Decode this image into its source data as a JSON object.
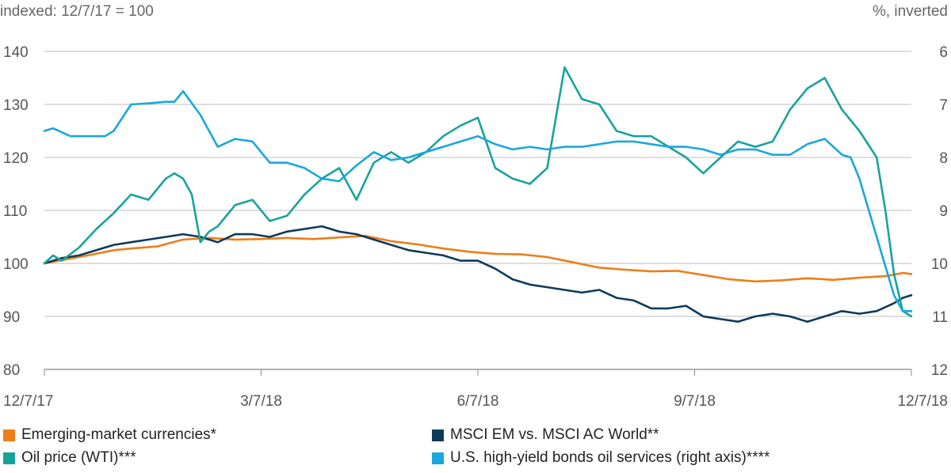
{
  "chart_data": {
    "type": "line",
    "left_axis_label": "indexed: 12/7/17 = 100",
    "right_axis_label": "%, inverted",
    "left_ylim": [
      80,
      140
    ],
    "left_ticks": [
      "80",
      "90",
      "100",
      "110",
      "120",
      "130",
      "140"
    ],
    "right_ylim": [
      6,
      12
    ],
    "right_inverted": true,
    "right_ticks": [
      "6",
      "7",
      "8",
      "9",
      "10",
      "11",
      "12"
    ],
    "x_ticks": [
      "12/7/17",
      "3/7/18",
      "6/7/18",
      "9/7/18",
      "12/7/18"
    ],
    "grid": "horizontal",
    "series": [
      {
        "name": "Emerging-market currencies*",
        "color": "#ee7d1a",
        "axis": "left",
        "x": [
          0,
          0.02,
          0.05,
          0.08,
          0.1,
          0.13,
          0.16,
          0.19,
          0.22,
          0.25,
          0.28,
          0.31,
          0.34,
          0.37,
          0.4,
          0.43,
          0.46,
          0.49,
          0.52,
          0.55,
          0.58,
          0.61,
          0.64,
          0.67,
          0.7,
          0.73,
          0.76,
          0.79,
          0.82,
          0.85,
          0.88,
          0.91,
          0.94,
          0.97,
          0.99,
          1.0
        ],
        "values": [
          100,
          100.6,
          101.5,
          102.5,
          102.8,
          103.2,
          104.5,
          104.8,
          104.5,
          104.6,
          104.8,
          104.6,
          104.9,
          105.2,
          104.2,
          103.6,
          102.8,
          102.2,
          101.8,
          101.7,
          101.2,
          100.2,
          99.2,
          98.8,
          98.5,
          98.6,
          97.8,
          97.0,
          96.6,
          96.8,
          97.2,
          96.9,
          97.3,
          97.6,
          98.2,
          98.0
        ]
      },
      {
        "name": "MSCI EM vs. MSCI AC World**",
        "color": "#0e3a5a",
        "axis": "left",
        "x": [
          0,
          0.02,
          0.04,
          0.06,
          0.08,
          0.1,
          0.12,
          0.14,
          0.16,
          0.18,
          0.2,
          0.22,
          0.24,
          0.26,
          0.28,
          0.3,
          0.32,
          0.34,
          0.36,
          0.38,
          0.4,
          0.42,
          0.44,
          0.46,
          0.48,
          0.5,
          0.52,
          0.54,
          0.56,
          0.58,
          0.6,
          0.62,
          0.64,
          0.66,
          0.68,
          0.7,
          0.72,
          0.74,
          0.76,
          0.78,
          0.8,
          0.82,
          0.84,
          0.86,
          0.88,
          0.9,
          0.92,
          0.94,
          0.96,
          0.98,
          0.99,
          1.0
        ],
        "values": [
          100,
          101,
          101.5,
          102.5,
          103.5,
          104,
          104.5,
          105,
          105.5,
          105,
          104,
          105.5,
          105.5,
          105,
          106,
          106.5,
          107,
          106,
          105.5,
          104.5,
          103.5,
          102.5,
          102,
          101.5,
          100.5,
          100.5,
          99,
          97,
          96,
          95.5,
          95,
          94.5,
          95,
          93.5,
          93,
          91.5,
          91.5,
          92,
          90,
          89.5,
          89,
          90,
          90.5,
          90,
          89,
          90,
          91,
          90.5,
          91,
          92.5,
          93.5,
          94
        ]
      },
      {
        "name": "Oil price (WTI)***",
        "color": "#17a39c",
        "axis": "left",
        "x": [
          0,
          0.01,
          0.02,
          0.04,
          0.06,
          0.08,
          0.1,
          0.12,
          0.13,
          0.14,
          0.15,
          0.16,
          0.17,
          0.18,
          0.19,
          0.2,
          0.22,
          0.24,
          0.26,
          0.28,
          0.3,
          0.32,
          0.34,
          0.36,
          0.38,
          0.4,
          0.42,
          0.44,
          0.46,
          0.48,
          0.5,
          0.52,
          0.54,
          0.56,
          0.58,
          0.6,
          0.62,
          0.64,
          0.66,
          0.68,
          0.7,
          0.72,
          0.74,
          0.76,
          0.78,
          0.8,
          0.82,
          0.84,
          0.86,
          0.88,
          0.9,
          0.92,
          0.94,
          0.96,
          0.97,
          0.98,
          0.99,
          1.0
        ],
        "values": [
          100,
          101.5,
          100.5,
          103,
          106.5,
          109.5,
          113,
          112,
          114,
          116,
          117,
          116,
          113,
          104,
          106,
          107,
          111,
          112,
          108,
          109,
          113,
          116,
          118,
          112,
          119,
          121,
          119,
          121,
          124,
          126,
          127.5,
          118,
          116,
          115,
          118,
          137,
          131,
          130,
          125,
          124,
          124,
          122,
          120,
          117,
          120,
          123,
          122,
          123,
          129,
          133,
          135,
          129,
          125,
          120,
          110,
          98,
          91,
          90
        ]
      },
      {
        "name": "U.S. high-yield bonds oil services (right axis)****",
        "color": "#1aa7dd",
        "axis": "right",
        "x": [
          0,
          0.01,
          0.03,
          0.05,
          0.07,
          0.08,
          0.1,
          0.12,
          0.14,
          0.15,
          0.16,
          0.18,
          0.2,
          0.22,
          0.24,
          0.26,
          0.28,
          0.3,
          0.32,
          0.34,
          0.36,
          0.38,
          0.4,
          0.42,
          0.44,
          0.46,
          0.48,
          0.5,
          0.52,
          0.54,
          0.56,
          0.58,
          0.6,
          0.62,
          0.64,
          0.66,
          0.68,
          0.7,
          0.72,
          0.74,
          0.76,
          0.78,
          0.8,
          0.82,
          0.84,
          0.86,
          0.88,
          0.9,
          0.92,
          0.93,
          0.94,
          0.96,
          0.98,
          0.99,
          1.0
        ],
        "values": [
          7.5,
          7.45,
          7.6,
          7.6,
          7.6,
          7.5,
          7.0,
          6.98,
          6.95,
          6.95,
          6.75,
          7.2,
          7.8,
          7.65,
          7.7,
          8.1,
          8.1,
          8.2,
          8.4,
          8.45,
          8.15,
          7.9,
          8.05,
          8.0,
          7.9,
          7.8,
          7.7,
          7.6,
          7.75,
          7.85,
          7.8,
          7.85,
          7.8,
          7.8,
          7.75,
          7.7,
          7.7,
          7.75,
          7.8,
          7.8,
          7.85,
          7.95,
          7.85,
          7.85,
          7.95,
          7.95,
          7.75,
          7.65,
          7.95,
          8.0,
          8.4,
          9.5,
          10.6,
          10.9,
          10.9
        ]
      }
    ]
  }
}
